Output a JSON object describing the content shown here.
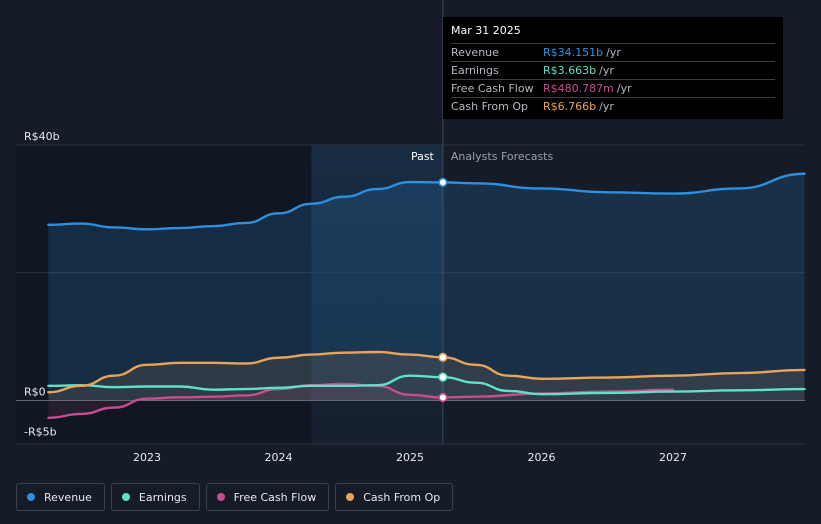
{
  "chart_data": {
    "type": "line",
    "title": "",
    "y_axis": {
      "min": -5,
      "max": 40,
      "labels": [
        {
          "value": 40,
          "text": "R$40b"
        },
        {
          "value": 0,
          "text": "R$0"
        },
        {
          "value": -5,
          "text": "-R$5b"
        }
      ]
    },
    "x_axis": {
      "ticks": [
        {
          "value": 2023.0,
          "text": "2023"
        },
        {
          "value": 2024.0,
          "text": "2024"
        },
        {
          "value": 2025.0,
          "text": "2025"
        },
        {
          "value": 2026.0,
          "text": "2026"
        },
        {
          "value": 2027.0,
          "text": "2027"
        }
      ]
    },
    "divider_x": 2025.25,
    "highlight_start_x": 2024.25,
    "labels": {
      "past": "Past",
      "forecast": "Analysts Forecasts"
    },
    "series": [
      {
        "name": "Revenue",
        "color": "#2d8fe0",
        "fill": true,
        "points": [
          [
            2022.25,
            27.5
          ],
          [
            2022.5,
            27.7
          ],
          [
            2022.75,
            27.1
          ],
          [
            2023.0,
            26.8
          ],
          [
            2023.25,
            27.0
          ],
          [
            2023.5,
            27.3
          ],
          [
            2023.75,
            27.8
          ],
          [
            2024.0,
            29.3
          ],
          [
            2024.25,
            30.8
          ],
          [
            2024.5,
            31.9
          ],
          [
            2024.75,
            33.1
          ],
          [
            2025.0,
            34.2
          ],
          [
            2025.25,
            34.151
          ]
        ]
      },
      {
        "name": "Revenue forecast",
        "color": "#2d8fe0",
        "fill": true,
        "forecast": true,
        "points": [
          [
            2025.25,
            34.151
          ],
          [
            2025.5,
            34.0
          ],
          [
            2026.0,
            33.2
          ],
          [
            2026.5,
            32.6
          ],
          [
            2027.0,
            32.4
          ],
          [
            2027.5,
            33.2
          ],
          [
            2028.0,
            35.5
          ]
        ]
      },
      {
        "name": "Earnings",
        "color": "#5fe0c8",
        "fill": false,
        "points": [
          [
            2022.25,
            2.3
          ],
          [
            2022.5,
            2.4
          ],
          [
            2022.75,
            2.1
          ],
          [
            2023.0,
            2.2
          ],
          [
            2023.25,
            2.2
          ],
          [
            2023.5,
            1.7
          ],
          [
            2023.75,
            1.8
          ],
          [
            2024.0,
            2.0
          ],
          [
            2024.25,
            2.3
          ],
          [
            2024.5,
            2.3
          ],
          [
            2024.75,
            2.4
          ],
          [
            2025.0,
            3.9
          ],
          [
            2025.25,
            3.663
          ]
        ]
      },
      {
        "name": "Earnings forecast",
        "color": "#5fe0c8",
        "fill": false,
        "forecast": true,
        "points": [
          [
            2025.25,
            3.663
          ],
          [
            2025.5,
            2.8
          ],
          [
            2025.75,
            1.5
          ],
          [
            2026.0,
            1.0
          ],
          [
            2026.5,
            1.2
          ],
          [
            2027.0,
            1.4
          ],
          [
            2027.5,
            1.6
          ],
          [
            2028.0,
            1.8
          ]
        ]
      },
      {
        "name": "Free Cash Flow",
        "color": "#c74d8e",
        "fill": true,
        "points": [
          [
            2022.25,
            -2.7
          ],
          [
            2022.5,
            -2.1
          ],
          [
            2022.75,
            -1.1
          ],
          [
            2023.0,
            0.3
          ],
          [
            2023.25,
            0.5
          ],
          [
            2023.5,
            0.6
          ],
          [
            2023.75,
            0.8
          ],
          [
            2024.0,
            1.8
          ],
          [
            2024.25,
            2.4
          ],
          [
            2024.5,
            2.6
          ],
          [
            2024.75,
            2.3
          ],
          [
            2025.0,
            0.9
          ],
          [
            2025.25,
            0.481
          ]
        ]
      },
      {
        "name": "Free Cash Flow forecast",
        "color": "#c74d8e",
        "fill": false,
        "forecast": true,
        "points": [
          [
            2025.25,
            0.481
          ],
          [
            2025.5,
            0.6
          ],
          [
            2026.0,
            1.1
          ],
          [
            2026.5,
            1.4
          ],
          [
            2027.0,
            1.7
          ]
        ]
      },
      {
        "name": "Cash From Op",
        "color": "#e8a45a",
        "fill": true,
        "points": [
          [
            2022.25,
            1.3
          ],
          [
            2022.5,
            2.3
          ],
          [
            2022.75,
            3.9
          ],
          [
            2023.0,
            5.6
          ],
          [
            2023.25,
            5.9
          ],
          [
            2023.5,
            5.9
          ],
          [
            2023.75,
            5.8
          ],
          [
            2024.0,
            6.7
          ],
          [
            2024.25,
            7.2
          ],
          [
            2024.5,
            7.5
          ],
          [
            2024.75,
            7.6
          ],
          [
            2025.0,
            7.2
          ],
          [
            2025.25,
            6.766
          ]
        ]
      },
      {
        "name": "Cash From Op forecast",
        "color": "#e8a45a",
        "fill": true,
        "forecast": true,
        "points": [
          [
            2025.25,
            6.766
          ],
          [
            2025.5,
            5.6
          ],
          [
            2025.75,
            3.9
          ],
          [
            2026.0,
            3.4
          ],
          [
            2026.5,
            3.6
          ],
          [
            2027.0,
            3.9
          ],
          [
            2027.5,
            4.3
          ],
          [
            2028.0,
            4.8
          ]
        ]
      }
    ],
    "markers": [
      {
        "series": "Revenue",
        "x": 2025.25,
        "y": 34.151,
        "color": "#2d8fe0"
      },
      {
        "series": "Cash From Op",
        "x": 2025.25,
        "y": 6.766,
        "color": "#e8a45a"
      },
      {
        "series": "Earnings",
        "x": 2025.25,
        "y": 3.663,
        "color": "#5fe0c8"
      },
      {
        "series": "Free Cash Flow",
        "x": 2025.25,
        "y": 0.481,
        "color": "#c74d8e"
      }
    ]
  },
  "tooltip": {
    "date": "Mar 31 2025",
    "rows": [
      {
        "name": "Revenue",
        "value": "R$34.151b",
        "unit": "/yr",
        "color": "#2d8fe0"
      },
      {
        "name": "Earnings",
        "value": "R$3.663b",
        "unit": "/yr",
        "color": "#5fe0c8"
      },
      {
        "name": "Free Cash Flow",
        "value": "R$480.787m",
        "unit": "/yr",
        "color": "#c74d8e"
      },
      {
        "name": "Cash From Op",
        "value": "R$6.766b",
        "unit": "/yr",
        "color": "#e8a45a"
      }
    ]
  },
  "legend": [
    {
      "label": "Revenue",
      "color": "#2d8fe0"
    },
    {
      "label": "Earnings",
      "color": "#5fe0c8"
    },
    {
      "label": "Free Cash Flow",
      "color": "#c74d8e"
    },
    {
      "label": "Cash From Op",
      "color": "#e8a45a"
    }
  ]
}
